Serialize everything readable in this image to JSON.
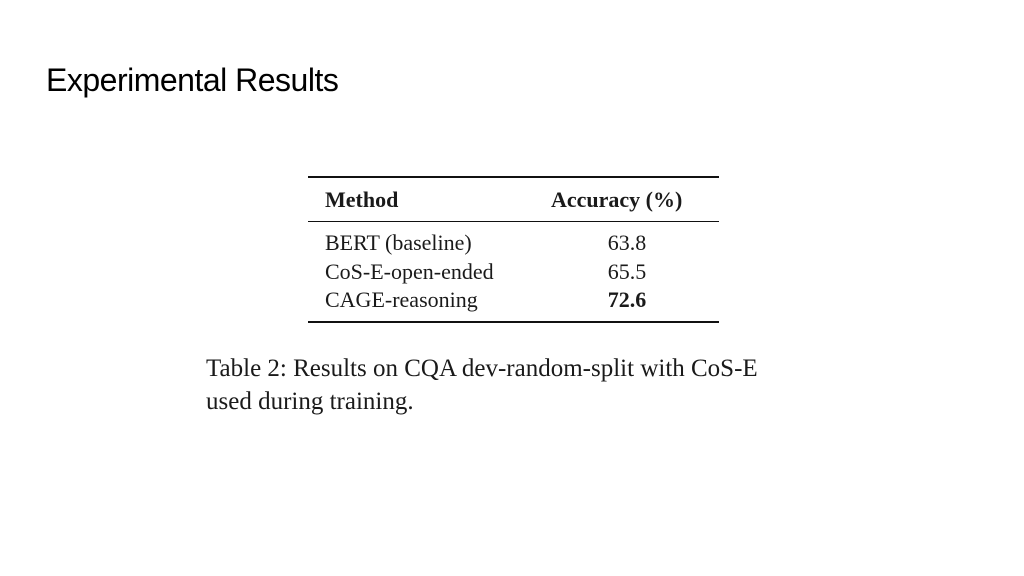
{
  "slide": {
    "title": "Experimental Results"
  },
  "table": {
    "headers": {
      "method": "Method",
      "accuracy": "Accuracy (%)"
    },
    "rows": [
      {
        "method": "BERT (baseline)",
        "accuracy": "63.8",
        "bold": false
      },
      {
        "method": "CoS-E-open-ended",
        "accuracy": "65.5",
        "bold": false
      },
      {
        "method": "CAGE-reasoning",
        "accuracy": "72.6",
        "bold": true
      }
    ],
    "caption_line1": "Table 2: Results on CQA dev-random-split with CoS-E",
    "caption_line2": "used during training."
  }
}
